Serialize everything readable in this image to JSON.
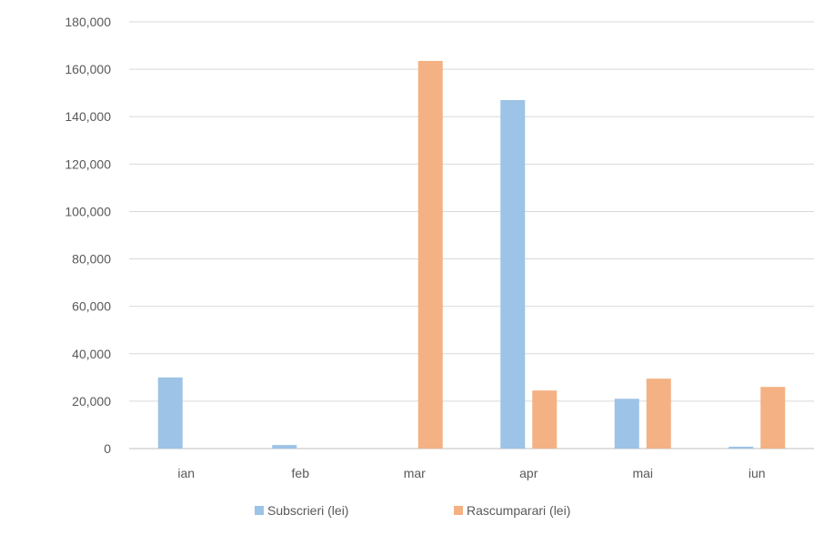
{
  "chart_data": {
    "type": "bar",
    "title": "",
    "xlabel": "",
    "ylabel": "",
    "categories": [
      "ian",
      "feb",
      "mar",
      "apr",
      "mai",
      "iun"
    ],
    "series": [
      {
        "name": "Subscrieri (lei)",
        "color": "#9dc3e6",
        "values": [
          30000,
          1500,
          0,
          147000,
          21000,
          800
        ]
      },
      {
        "name": "Rascumparari (lei)",
        "color": "#f4b183",
        "values": [
          0,
          0,
          163500,
          24500,
          29500,
          26000
        ]
      }
    ],
    "ylim": [
      0,
      180000
    ],
    "yticks": [
      0,
      20000,
      40000,
      60000,
      80000,
      100000,
      120000,
      140000,
      160000,
      180000
    ],
    "ytick_labels": [
      "0",
      "20,000",
      "40,000",
      "60,000",
      "80,000",
      "100,000",
      "120,000",
      "140,000",
      "160,000",
      "180,000"
    ],
    "grid": true,
    "legend_position": "bottom"
  }
}
